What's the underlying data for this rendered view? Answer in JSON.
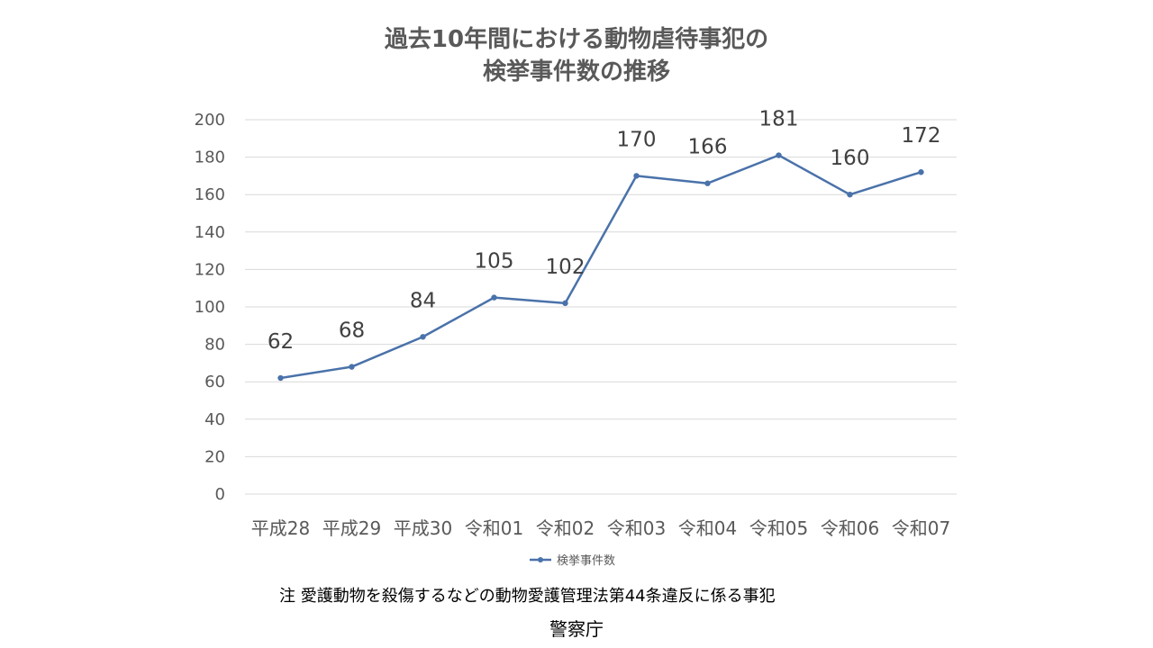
{
  "chart_data": {
    "type": "line",
    "title": [
      "過去10年間における動物虐待事犯の",
      "検挙事件数の推移"
    ],
    "categories": [
      "平成28",
      "平成29",
      "平成30",
      "令和01",
      "令和02",
      "令和03",
      "令和04",
      "令和05",
      "令和06",
      "令和07"
    ],
    "series": [
      {
        "name": "検挙事件数",
        "values": [
          62,
          68,
          84,
          105,
          102,
          170,
          166,
          181,
          160,
          172
        ],
        "color": "#4a72aa"
      }
    ],
    "yticks": [
      0,
      20,
      40,
      60,
      80,
      100,
      120,
      140,
      160,
      180,
      200
    ],
    "ylim": [
      0,
      200
    ],
    "xlabel": "",
    "ylabel": "",
    "grid": true,
    "legend_position": "bottom",
    "data_labels": true,
    "gridline_color": "#d9d9d9",
    "axis_color": "#d9d9d9"
  },
  "note": "注 愛護動物を殺傷するなどの動物愛護管理法第44条違反に係る事犯",
  "source": "警察庁"
}
